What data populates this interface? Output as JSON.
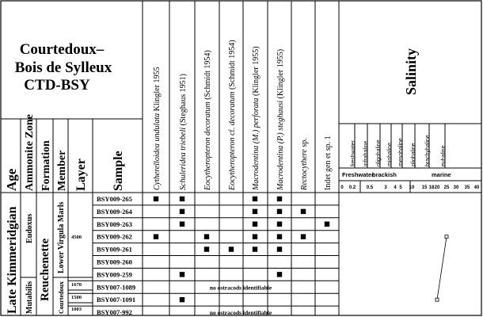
{
  "site": {
    "title_line1": "Courtedoux–",
    "title_line2": "Bois de Sylleux",
    "title_line3": "CTD-BSY"
  },
  "headers": {
    "age": "Age",
    "ammonite_zone": "Ammonite Zone",
    "formation": "Formation",
    "member": "Member",
    "layer": "Layer",
    "sample": "Sample",
    "salinity": "Salinity"
  },
  "strat": {
    "age": "Late Kimmeridgian",
    "zone_upper": "Eudoxus",
    "zone_lower": "Mutabilis",
    "formation": "Reuchenette",
    "member_upper": "Lower Virgula Marls",
    "member_lower": "Courtedoux"
  },
  "species": [
    {
      "genus": "Cytherelloidea undulata",
      "author": "Klingler 1955"
    },
    {
      "genus": "Schuleridea triebeli",
      "author": "(Steghaus 1951)"
    },
    {
      "genus": "Eocytheropteron decoratum",
      "author": "(Schmidt 1954)"
    },
    {
      "genus": "Eocytheropteron",
      "mid": "cf.",
      "genus2": "decoratum",
      "author": "(Schmidt 1954)"
    },
    {
      "genus": "Macrodentina (M.) perforata",
      "author": "(Klingler 1955)"
    },
    {
      "genus": "Macrodentina (P.) steghausi",
      "author": "(Klingler 1955)"
    },
    {
      "genus": "Rectocythere",
      "author": "sp."
    },
    {
      "genus": "",
      "author": "Indet gen et sp. 1"
    }
  ],
  "salinity_classes": [
    "freshwater",
    "infrahaline",
    "oligohaline",
    "miohaline",
    "mesohaline",
    "pliohaline",
    "brachyhaline",
    "euhaline"
  ],
  "salinity_groups": [
    "Freshwater",
    "brackish",
    "marine"
  ],
  "salinity_ticks": [
    "0",
    "0.2",
    "0.5",
    "3",
    "4",
    "5",
    "10",
    "15",
    "18",
    "20",
    "25",
    "30",
    "35",
    "40"
  ],
  "layers": [
    {
      "layer": "4500",
      "rows": 8
    },
    {
      "layer": "1670",
      "rows": 1
    },
    {
      "layer": "1500",
      "rows": 1
    },
    {
      "layer": "1003",
      "rows": 1
    }
  ],
  "samples": [
    {
      "id": "BSY009-265",
      "presence": [
        1,
        1,
        0,
        0,
        1,
        1,
        0,
        0
      ],
      "note": ""
    },
    {
      "id": "BSY009-264",
      "presence": [
        0,
        1,
        0,
        0,
        1,
        1,
        1,
        0
      ],
      "note": ""
    },
    {
      "id": "BSY009-263",
      "presence": [
        0,
        1,
        0,
        0,
        1,
        1,
        0,
        1
      ],
      "note": ""
    },
    {
      "id": "BSY009-262",
      "presence": [
        1,
        0,
        1,
        0,
        1,
        1,
        1,
        0
      ],
      "note": ""
    },
    {
      "id": "BSY009-261",
      "presence": [
        0,
        0,
        1,
        1,
        1,
        1,
        0,
        0
      ],
      "note": ""
    },
    {
      "id": "BSY009-260",
      "presence": [
        0,
        0,
        0,
        0,
        0,
        0,
        0,
        0
      ],
      "note": ""
    },
    {
      "id": "BSY009-259",
      "presence": [
        0,
        1,
        0,
        0,
        0,
        1,
        0,
        0
      ],
      "note": ""
    },
    {
      "id": "BSY007-1089",
      "presence": [
        0,
        0,
        0,
        0,
        0,
        0,
        0,
        0
      ],
      "note": "no ostracods identifiable"
    },
    {
      "id": "BSY007-1091",
      "presence": [
        0,
        1,
        0,
        0,
        0,
        0,
        0,
        0
      ],
      "note": ""
    },
    {
      "id": "BSY007-992",
      "presence": [
        0,
        0,
        0,
        0,
        0,
        0,
        0,
        0
      ],
      "note": "no ostracods identifiable"
    }
  ],
  "chart_data": {
    "type": "table",
    "title": "Salinity",
    "salinity_points": [
      {
        "sample": "BSY009-262",
        "salinity": 25
      },
      {
        "sample": "BSY007-1091",
        "salinity": 20
      }
    ]
  }
}
